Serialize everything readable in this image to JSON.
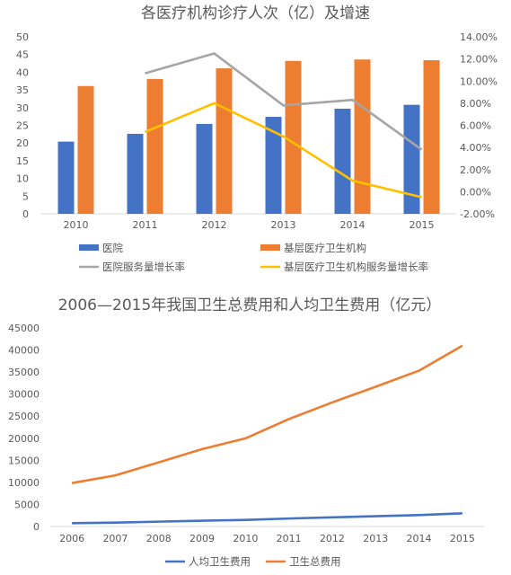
{
  "chart_data": [
    {
      "type": "bar+line",
      "title": "各医疗机构诊疗人次（亿）及增速",
      "categories": [
        "2010",
        "2011",
        "2012",
        "2013",
        "2014",
        "2015"
      ],
      "ylim_left": [
        0,
        50
      ],
      "ylim_right": [
        -0.02,
        0.14
      ],
      "yticks_left": [
        "0",
        "5",
        "10",
        "15",
        "20",
        "25",
        "30",
        "35",
        "40",
        "45",
        "50"
      ],
      "yticks_right": [
        "-2.00%",
        "0.00%",
        "2.00%",
        "4.00%",
        "6.00%",
        "8.00%",
        "10.00%",
        "12.00%",
        "14.00%"
      ],
      "bar_series": [
        {
          "name": "医院",
          "color": "#4472C4",
          "values": [
            20.4,
            22.6,
            25.4,
            27.4,
            29.7,
            30.8
          ]
        },
        {
          "name": "基层医疗卫生机构",
          "color": "#ED7D31",
          "values": [
            36.1,
            38.1,
            41.1,
            43.2,
            43.6,
            43.4
          ]
        }
      ],
      "line_series": [
        {
          "name": "医院服务量增长率",
          "color": "#A5A5A5",
          "values": [
            null,
            0.107,
            0.125,
            0.078,
            0.083,
            0.038
          ]
        },
        {
          "name": "基层医疗卫生机构服务量增长率",
          "color": "#FFC000",
          "values": [
            null,
            0.054,
            0.08,
            0.05,
            0.01,
            -0.005
          ]
        }
      ],
      "grid": false,
      "legend_position": "bottom"
    },
    {
      "type": "line",
      "title": "2006—2015年我国卫生总费用和人均卫生费用（亿元）",
      "categories": [
        "2006",
        "2007",
        "2008",
        "2009",
        "2010",
        "2011",
        "2012",
        "2013",
        "2014",
        "2015"
      ],
      "ylim": [
        0,
        45000
      ],
      "yticks": [
        "0",
        "5000",
        "10000",
        "15000",
        "20000",
        "25000",
        "30000",
        "35000",
        "40000",
        "45000"
      ],
      "series": [
        {
          "name": "人均卫生费用",
          "color": "#4472C4",
          "values": [
            748,
            876,
            1095,
            1314,
            1490,
            1807,
            2077,
            2327,
            2582,
            2981
          ]
        },
        {
          "name": "卫生总费用",
          "color": "#ED7D31",
          "values": [
            9843,
            11574,
            14535,
            17542,
            19980,
            24346,
            28119,
            31669,
            35312,
            40975
          ]
        }
      ],
      "grid": false,
      "legend_position": "bottom"
    }
  ]
}
